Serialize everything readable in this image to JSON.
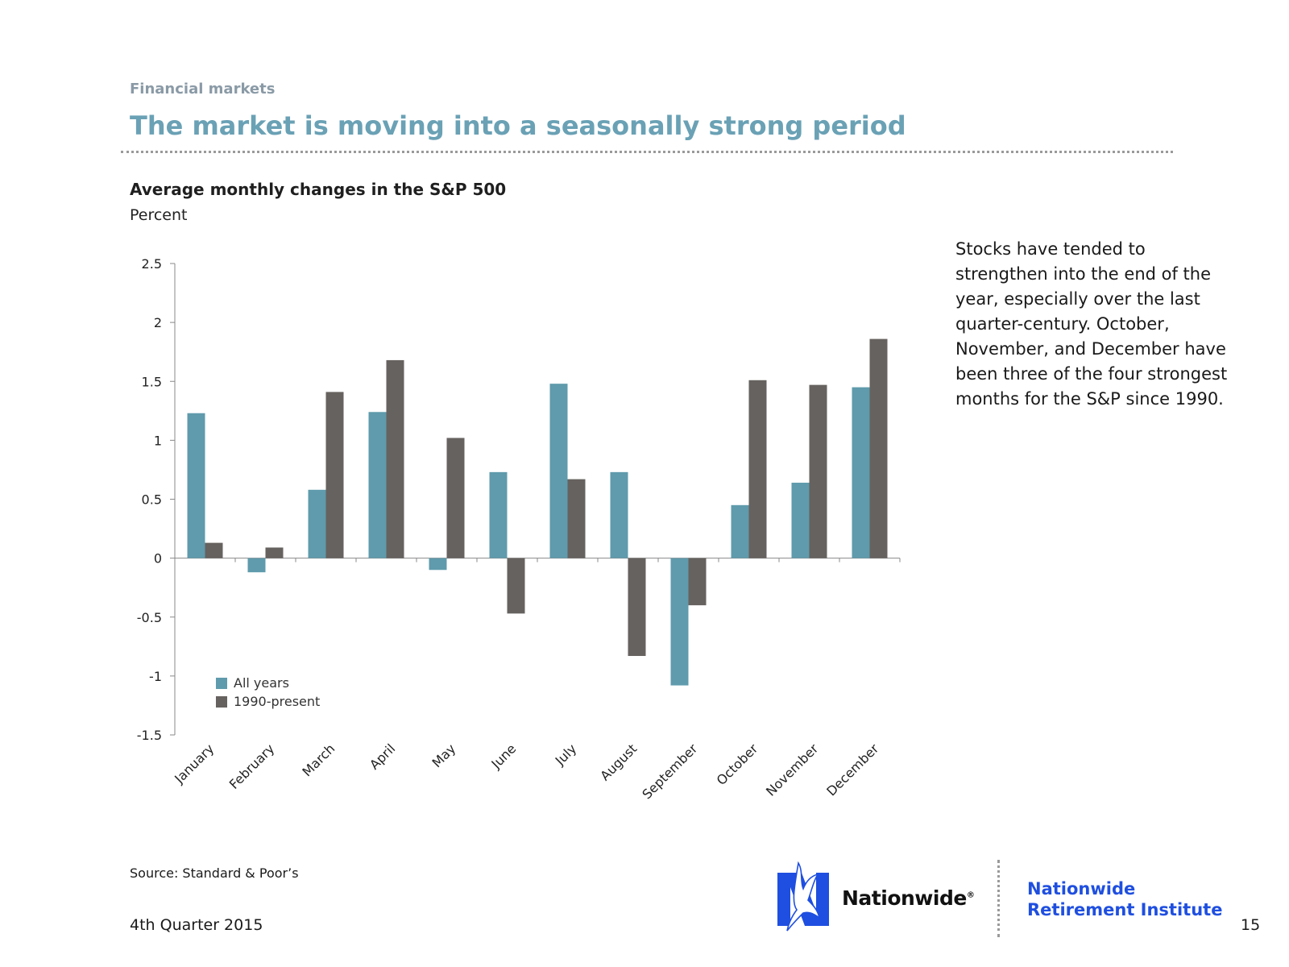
{
  "header": {
    "section_label": "Financial markets",
    "title": "The market is moving into a seasonally strong period"
  },
  "commentary": "Stocks have tended to strengthen into the end of the year, especially over the last quarter-century. October, November, and December have been three of the four strongest months for the S&P since 1990.",
  "footer": {
    "source": "Source: Standard & Poor’s",
    "date": "4th Quarter 2015",
    "page_number": "15",
    "brand": "Nationwide",
    "brand_mark": "®",
    "institute_line1": "Nationwide",
    "institute_line2": "Retirement Institute"
  },
  "colors": {
    "all_years": "#5f9bac",
    "since_1990": "#66625f",
    "brand_blue": "#1f4fe0"
  },
  "chart_data": {
    "type": "bar",
    "title": "Average monthly changes in the S&P 500",
    "ylabel": "Percent",
    "xlabel": "",
    "categories": [
      "January",
      "February",
      "March",
      "April",
      "May",
      "June",
      "July",
      "August",
      "September",
      "October",
      "November",
      "December"
    ],
    "series": [
      {
        "name": "All years",
        "values": [
          1.23,
          -0.12,
          0.58,
          1.24,
          -0.1,
          0.73,
          1.48,
          0.73,
          -1.08,
          0.45,
          0.64,
          1.45
        ]
      },
      {
        "name": "1990-present",
        "values": [
          0.13,
          0.09,
          1.41,
          1.68,
          1.02,
          -0.47,
          0.67,
          -0.83,
          -0.4,
          1.51,
          1.47,
          1.86
        ]
      }
    ],
    "ylim": [
      -1.5,
      2.5
    ],
    "yticks": [
      "2.5",
      "2",
      "1.5",
      "1",
      "0.5",
      "0",
      "-0.5",
      "-1",
      "-1.5"
    ],
    "ytick_values": [
      2.5,
      2,
      1.5,
      1,
      0.5,
      0,
      -0.5,
      -1,
      -1.5
    ],
    "grid": false,
    "legend_position": "bottom-left"
  }
}
